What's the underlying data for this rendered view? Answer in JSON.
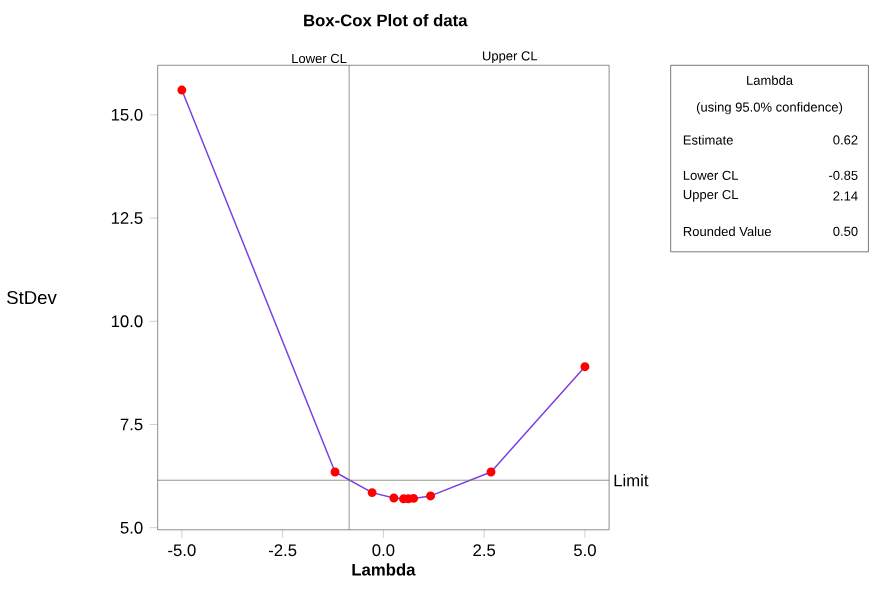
{
  "chart_data": {
    "type": "line",
    "title": "Box-Cox Plot of data",
    "xlabel": "Lambda",
    "ylabel": "StDev",
    "x": [
      -5.0,
      -1.2,
      -0.28,
      0.26,
      0.5,
      0.62,
      0.75,
      1.17,
      2.67,
      5.0
    ],
    "series": [
      {
        "color": "#7b3fe4",
        "values": [
          15.6,
          6.35,
          5.85,
          5.72,
          5.7,
          5.7,
          5.71,
          5.77,
          6.35,
          8.9
        ]
      }
    ],
    "marker": "circle",
    "line_style": "solid",
    "grid": false,
    "xlim": [
      -5.6,
      5.6
    ],
    "ylim": [
      4.95,
      16.2
    ],
    "xticks": [
      {
        "value": -5,
        "label": "-5.0"
      },
      {
        "value": -2.5,
        "label": "-2.5"
      },
      {
        "value": 0,
        "label": "0.0"
      },
      {
        "value": 2.5,
        "label": "2.5"
      },
      {
        "value": 5,
        "label": "5.0"
      }
    ],
    "yticks": [
      {
        "value": 5,
        "label": "5.0"
      },
      {
        "value": 7.5,
        "label": "7.5"
      },
      {
        "value": 10,
        "label": "10.0"
      },
      {
        "value": 12.5,
        "label": "12.5"
      },
      {
        "value": 15,
        "label": "15.0"
      }
    ],
    "ref_lines": [
      {
        "axis": "x",
        "value": -0.85,
        "label": "Lower CL",
        "color": "#707070"
      },
      {
        "axis": "y",
        "value": 6.15,
        "label": "Limit",
        "color": "#707060"
      }
    ],
    "annotations": [
      "Upper CL",
      "Lambda",
      "(using 95.0% confidence)",
      "Estimate",
      "0.62",
      "Lower CL",
      "-0.85",
      "Upper CL",
      "2.14",
      "Rounded Value",
      "0.50"
    ]
  }
}
